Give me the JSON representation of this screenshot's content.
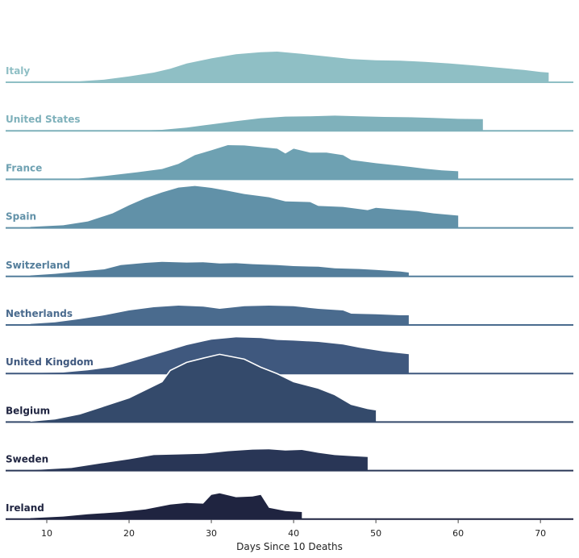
{
  "chart_data": {
    "type": "ridgeline",
    "xlabel": "Days Since 10 Deaths",
    "xlim": [
      5,
      74
    ],
    "xticks": [
      10,
      20,
      30,
      40,
      50,
      60,
      70
    ],
    "grid": false,
    "series": [
      {
        "name": "Italy",
        "color": "#8fbfc5",
        "start": 8,
        "points": [
          [
            8,
            0.03
          ],
          [
            14,
            0.03
          ],
          [
            17,
            0.08
          ],
          [
            20,
            0.18
          ],
          [
            23,
            0.3
          ],
          [
            25,
            0.42
          ],
          [
            27,
            0.58
          ],
          [
            30,
            0.74
          ],
          [
            33,
            0.87
          ],
          [
            36,
            0.93
          ],
          [
            38,
            0.95
          ],
          [
            41,
            0.88
          ],
          [
            44,
            0.8
          ],
          [
            47,
            0.72
          ],
          [
            50,
            0.68
          ],
          [
            53,
            0.67
          ],
          [
            56,
            0.63
          ],
          [
            59,
            0.58
          ],
          [
            62,
            0.52
          ],
          [
            65,
            0.45
          ],
          [
            68,
            0.38
          ],
          [
            70,
            0.32
          ],
          [
            71,
            0.3
          ]
        ]
      },
      {
        "name": "United States",
        "color": "#7fb1bb",
        "start": 8,
        "points": [
          [
            8,
            0
          ],
          [
            20,
            0
          ],
          [
            24,
            0.03
          ],
          [
            27,
            0.1
          ],
          [
            30,
            0.2
          ],
          [
            33,
            0.3
          ],
          [
            36,
            0.39
          ],
          [
            39,
            0.44
          ],
          [
            42,
            0.45
          ],
          [
            45,
            0.47
          ],
          [
            48,
            0.45
          ],
          [
            51,
            0.43
          ],
          [
            54,
            0.42
          ],
          [
            57,
            0.4
          ],
          [
            60,
            0.37
          ],
          [
            63,
            0.36
          ]
        ]
      },
      {
        "name": "France",
        "color": "#6ea1b2",
        "start": 8,
        "points": [
          [
            8,
            0
          ],
          [
            13,
            0
          ],
          [
            17,
            0.1
          ],
          [
            21,
            0.22
          ],
          [
            24,
            0.32
          ],
          [
            26,
            0.48
          ],
          [
            28,
            0.75
          ],
          [
            30,
            0.9
          ],
          [
            32,
            1.06
          ],
          [
            34,
            1.05
          ],
          [
            36,
            1.0
          ],
          [
            38,
            0.95
          ],
          [
            39,
            0.8
          ],
          [
            40,
            0.95
          ],
          [
            42,
            0.83
          ],
          [
            44,
            0.83
          ],
          [
            46,
            0.75
          ],
          [
            47,
            0.6
          ],
          [
            50,
            0.5
          ],
          [
            53,
            0.42
          ],
          [
            56,
            0.33
          ],
          [
            58,
            0.28
          ],
          [
            60,
            0.25
          ]
        ]
      },
      {
        "name": "Spain",
        "color": "#6191a8",
        "start": 8,
        "points": [
          [
            8,
            0.03
          ],
          [
            12,
            0.08
          ],
          [
            15,
            0.2
          ],
          [
            18,
            0.45
          ],
          [
            20,
            0.7
          ],
          [
            22,
            0.92
          ],
          [
            24,
            1.1
          ],
          [
            26,
            1.25
          ],
          [
            28,
            1.3
          ],
          [
            30,
            1.24
          ],
          [
            32,
            1.15
          ],
          [
            34,
            1.05
          ],
          [
            37,
            0.95
          ],
          [
            39,
            0.82
          ],
          [
            42,
            0.8
          ],
          [
            43,
            0.68
          ],
          [
            46,
            0.65
          ],
          [
            49,
            0.55
          ],
          [
            50,
            0.62
          ],
          [
            53,
            0.56
          ],
          [
            55,
            0.52
          ],
          [
            57,
            0.45
          ],
          [
            60,
            0.38
          ]
        ]
      },
      {
        "name": "Switzerland",
        "color": "#547e9b",
        "start": 8,
        "points": [
          [
            8,
            0.03
          ],
          [
            11,
            0.08
          ],
          [
            14,
            0.15
          ],
          [
            17,
            0.22
          ],
          [
            19,
            0.35
          ],
          [
            22,
            0.42
          ],
          [
            24,
            0.45
          ],
          [
            27,
            0.43
          ],
          [
            29,
            0.44
          ],
          [
            31,
            0.4
          ],
          [
            33,
            0.41
          ],
          [
            35,
            0.38
          ],
          [
            38,
            0.35
          ],
          [
            40,
            0.32
          ],
          [
            43,
            0.3
          ],
          [
            45,
            0.25
          ],
          [
            48,
            0.23
          ],
          [
            50,
            0.2
          ],
          [
            53,
            0.15
          ],
          [
            54,
            0.12
          ]
        ]
      },
      {
        "name": "Netherlands",
        "color": "#4a6b8e",
        "start": 8,
        "points": [
          [
            8,
            0.03
          ],
          [
            11,
            0.08
          ],
          [
            14,
            0.18
          ],
          [
            17,
            0.3
          ],
          [
            20,
            0.45
          ],
          [
            23,
            0.55
          ],
          [
            26,
            0.6
          ],
          [
            29,
            0.57
          ],
          [
            31,
            0.5
          ],
          [
            34,
            0.58
          ],
          [
            37,
            0.6
          ],
          [
            40,
            0.58
          ],
          [
            43,
            0.5
          ],
          [
            46,
            0.45
          ],
          [
            47,
            0.35
          ],
          [
            50,
            0.33
          ],
          [
            53,
            0.3
          ],
          [
            54,
            0.3
          ]
        ]
      },
      {
        "name": "United Kingdom",
        "color": "#3f587e",
        "start": 8,
        "points": [
          [
            8,
            0.01
          ],
          [
            12,
            0.03
          ],
          [
            15,
            0.1
          ],
          [
            18,
            0.2
          ],
          [
            21,
            0.42
          ],
          [
            24,
            0.65
          ],
          [
            27,
            0.88
          ],
          [
            30,
            1.05
          ],
          [
            33,
            1.12
          ],
          [
            36,
            1.1
          ],
          [
            38,
            1.04
          ],
          [
            40,
            1.02
          ],
          [
            43,
            0.98
          ],
          [
            46,
            0.9
          ],
          [
            48,
            0.8
          ],
          [
            51,
            0.68
          ],
          [
            54,
            0.6
          ]
        ]
      },
      {
        "name": "Belgium",
        "color": "#344a6b",
        "start": 8,
        "points": [
          [
            8,
            0.03
          ],
          [
            11,
            0.1
          ],
          [
            14,
            0.25
          ],
          [
            17,
            0.5
          ],
          [
            20,
            0.75
          ],
          [
            22,
            1.0
          ],
          [
            24,
            1.25
          ],
          [
            25,
            1.6
          ],
          [
            27,
            1.85
          ],
          [
            29,
            1.98
          ],
          [
            31,
            2.1
          ],
          [
            34,
            1.95
          ],
          [
            36,
            1.7
          ],
          [
            38,
            1.5
          ],
          [
            40,
            1.25
          ],
          [
            43,
            1.05
          ],
          [
            45,
            0.85
          ],
          [
            47,
            0.55
          ],
          [
            49,
            0.42
          ],
          [
            50,
            0.38
          ]
        ]
      },
      {
        "name": "Sweden",
        "color": "#293656",
        "start": 8,
        "points": [
          [
            8,
            0.01
          ],
          [
            13,
            0.08
          ],
          [
            16,
            0.2
          ],
          [
            20,
            0.35
          ],
          [
            23,
            0.48
          ],
          [
            26,
            0.5
          ],
          [
            29,
            0.52
          ],
          [
            32,
            0.6
          ],
          [
            35,
            0.65
          ],
          [
            37,
            0.66
          ],
          [
            39,
            0.62
          ],
          [
            41,
            0.64
          ],
          [
            43,
            0.55
          ],
          [
            45,
            0.48
          ],
          [
            47,
            0.45
          ],
          [
            49,
            0.42
          ]
        ]
      },
      {
        "name": "Ireland",
        "color": "#1f2440",
        "start": 8,
        "points": [
          [
            8,
            0.03
          ],
          [
            12,
            0.08
          ],
          [
            15,
            0.15
          ],
          [
            19,
            0.22
          ],
          [
            22,
            0.3
          ],
          [
            25,
            0.45
          ],
          [
            27,
            0.5
          ],
          [
            29,
            0.48
          ],
          [
            30,
            0.75
          ],
          [
            31,
            0.8
          ],
          [
            33,
            0.68
          ],
          [
            35,
            0.7
          ],
          [
            36,
            0.75
          ],
          [
            37,
            0.35
          ],
          [
            39,
            0.25
          ],
          [
            41,
            0.22
          ]
        ]
      }
    ],
    "overlay_line": {
      "name": "Belgium",
      "color": "#ffffff",
      "points": [
        [
          8,
          0.03
        ],
        [
          11,
          0.1
        ],
        [
          14,
          0.25
        ],
        [
          17,
          0.5
        ],
        [
          20,
          0.75
        ],
        [
          22,
          1.0
        ],
        [
          24,
          1.25
        ],
        [
          25,
          1.6
        ],
        [
          27,
          1.85
        ],
        [
          29,
          1.98
        ],
        [
          31,
          2.1
        ],
        [
          34,
          1.95
        ],
        [
          36,
          1.7
        ],
        [
          38,
          1.5
        ],
        [
          40,
          1.25
        ],
        [
          43,
          1.05
        ],
        [
          45,
          0.85
        ],
        [
          47,
          0.55
        ],
        [
          49,
          0.42
        ],
        [
          50,
          0.38
        ]
      ]
    }
  }
}
